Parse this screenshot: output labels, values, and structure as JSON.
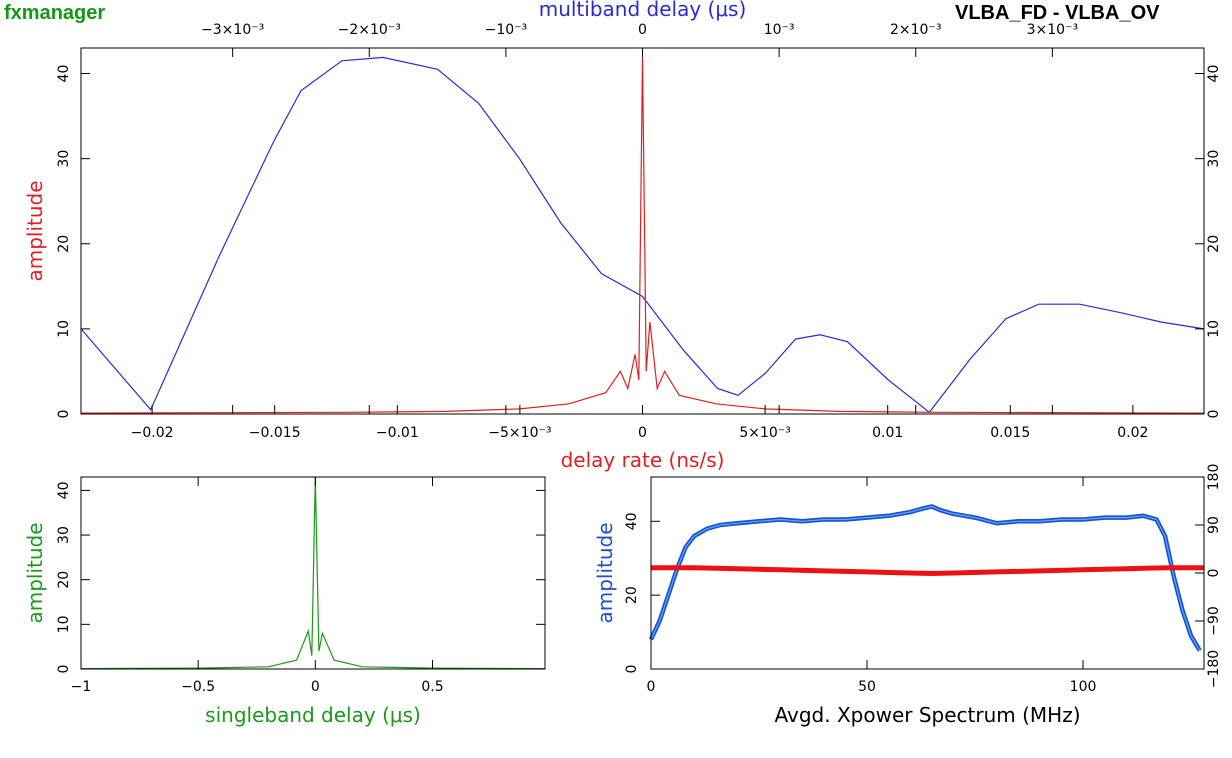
{
  "header": {
    "app_label": "fxmanager",
    "baseline": "VLBA_FD - VLBA_OV"
  },
  "colors": {
    "delay_rate": "#e02020",
    "multiband": "#2a2ad6",
    "singleband": "#1a9a1a",
    "amplitude_spectrum": "#1f4fd0",
    "amplitude_spectrum_inner": "#4fb0ff",
    "phase_spectrum": "#ee1111",
    "axes": "#000000"
  },
  "chart_data": [
    {
      "id": "main",
      "type": "line",
      "title": "",
      "xlabel": "delay rate (ns/s)",
      "x2label": "multiband delay (μs)",
      "ylabel": "amplitude",
      "xlim": [
        -0.0229,
        0.0229
      ],
      "x2lim": [
        -0.00411,
        0.00411
      ],
      "ylim": [
        0,
        43
      ],
      "x_ticks": [
        -0.02,
        -0.015,
        -0.01,
        -0.005,
        0,
        0.005,
        0.01,
        0.015,
        0.02
      ],
      "x_tick_labels": [
        "−0.02",
        "−0.015",
        "−0.01",
        "−5×10⁻³",
        "0",
        "5×10⁻³",
        "0.01",
        "0.015",
        "0.02"
      ],
      "x2_ticks": [
        -0.003,
        -0.002,
        -0.001,
        0,
        0.001,
        0.002,
        0.003
      ],
      "x2_tick_labels": [
        "−3×10⁻³",
        "−2×10⁻³",
        "−10⁻³",
        "0",
        "10⁻³",
        "2×10⁻³",
        "3×10⁻³"
      ],
      "y_ticks": [
        0,
        10,
        20,
        30,
        40
      ],
      "y_tick_labels": [
        "0",
        "10",
        "20",
        "30",
        "40"
      ],
      "series": [
        {
          "axis": "x2",
          "color_key": "multiband",
          "x": [
            -0.00411,
            -0.0036,
            -0.0031,
            -0.0027,
            -0.0025,
            -0.0022,
            -0.0019,
            -0.0015,
            -0.0012,
            -0.0009,
            -0.0006,
            -0.0003,
            0,
            0.0003,
            0.00055,
            0.0007,
            0.0009,
            0.00112,
            0.0013,
            0.0015,
            0.0018,
            0.0021,
            0.0024,
            0.00266,
            0.0029,
            0.0032,
            0.0035,
            0.0038,
            0.00411
          ],
          "y": [
            10.0,
            0.5,
            18.5,
            32.0,
            38.0,
            41.5,
            41.9,
            40.5,
            36.5,
            30.0,
            22.5,
            16.5,
            13.8,
            7.5,
            3.0,
            2.2,
            4.8,
            8.8,
            9.3,
            8.5,
            4.0,
            0.2,
            6.5,
            11.2,
            12.9,
            12.9,
            11.9,
            10.8,
            10.0
          ]
        },
        {
          "axis": "x",
          "color_key": "delay_rate",
          "x": [
            -0.0229,
            -0.012,
            -0.008,
            -0.005,
            -0.003,
            -0.0015,
            -0.0009,
            -0.0006,
            -0.0003,
            -0.00015,
            0,
            0.00015,
            0.0003,
            0.0006,
            0.0009,
            0.0015,
            0.003,
            0.005,
            0.008,
            0.012,
            0.0229
          ],
          "y": [
            0.1,
            0.2,
            0.3,
            0.6,
            1.2,
            2.5,
            5.0,
            3.0,
            7.0,
            4.0,
            42.0,
            5.0,
            10.8,
            3.0,
            5.0,
            2.2,
            1.2,
            0.6,
            0.3,
            0.2,
            0.1
          ]
        }
      ]
    },
    {
      "id": "singleband",
      "type": "line",
      "title": "",
      "xlabel": "singleband delay (μs)",
      "ylabel": "amplitude",
      "xlim": [
        -1,
        0.98
      ],
      "ylim": [
        0,
        43
      ],
      "x_ticks": [
        -1,
        -0.5,
        0,
        0.5
      ],
      "x_tick_labels": [
        "−1",
        "−0.5",
        "0",
        "0.5"
      ],
      "y_ticks": [
        0,
        10,
        20,
        30,
        40
      ],
      "y_tick_labels": [
        "0",
        "10",
        "20",
        "30",
        "40"
      ],
      "series": [
        {
          "color_key": "singleband",
          "x": [
            -1,
            -0.5,
            -0.2,
            -0.08,
            -0.03,
            -0.015,
            0,
            0.015,
            0.03,
            0.08,
            0.2,
            0.5,
            0.98
          ],
          "y": [
            0.1,
            0.2,
            0.5,
            2.0,
            8.5,
            3.0,
            43.0,
            4.0,
            8.0,
            2.0,
            0.5,
            0.2,
            0.1
          ]
        }
      ]
    },
    {
      "id": "spectrum",
      "type": "line",
      "title": "",
      "xlabel": "Avgd. Xpower Spectrum (MHz)",
      "ylabel": "amplitude",
      "xlim": [
        0,
        128
      ],
      "ylim": [
        0,
        52
      ],
      "y2lim": [
        -180,
        180
      ],
      "x_ticks": [
        0,
        50,
        100
      ],
      "x_tick_labels": [
        "0",
        "50",
        "100"
      ],
      "y_ticks": [
        0,
        20,
        40
      ],
      "y_tick_labels": [
        "0",
        "20",
        "40"
      ],
      "y2_ticks": [
        -180,
        -90,
        0,
        90,
        180
      ],
      "y2_tick_labels": [
        "−180",
        "−90",
        "0",
        "90",
        "180"
      ],
      "series": [
        {
          "name": "",
          "color_key": "amplitude_spectrum",
          "axis": "y",
          "x": [
            0,
            2,
            4,
            6,
            8,
            10,
            13,
            16,
            20,
            25,
            30,
            35,
            40,
            45,
            50,
            55,
            60,
            63,
            65,
            67,
            70,
            75,
            80,
            85,
            90,
            95,
            100,
            105,
            110,
            114,
            117,
            119,
            121,
            123,
            125,
            127
          ],
          "y": [
            8,
            13,
            20,
            27,
            33,
            36,
            38,
            39,
            39.5,
            40,
            40.5,
            40,
            40.5,
            40.5,
            41,
            41.5,
            42.5,
            43.5,
            44,
            43,
            42,
            41,
            39.5,
            40,
            40,
            40.5,
            40.5,
            41,
            41,
            41.5,
            40.5,
            36,
            25,
            16,
            9,
            5
          ]
        },
        {
          "name": "",
          "color_key": "phase_spectrum",
          "axis": "y2",
          "x": [
            0,
            5,
            10,
            20,
            30,
            40,
            50,
            60,
            65,
            70,
            80,
            90,
            100,
            110,
            120,
            128
          ],
          "y": [
            10,
            10,
            10,
            8,
            6,
            4,
            2,
            0,
            -1,
            0,
            2,
            4,
            6,
            8,
            10,
            10
          ]
        }
      ]
    }
  ]
}
